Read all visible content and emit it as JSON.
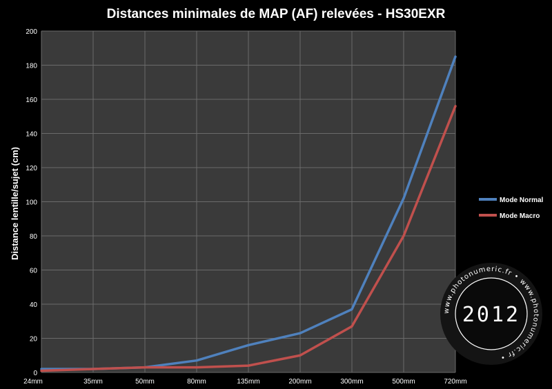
{
  "chart_data": {
    "type": "line",
    "title": "Distances minimales de MAP (AF) relevées - HS30EXR",
    "ylabel": "Distance lentille/sujet (cm)",
    "xlabel": "",
    "categories": [
      "24mm",
      "35mm",
      "50mm",
      "80mm",
      "135mm",
      "200mm",
      "300mm",
      "500mm",
      "720mm"
    ],
    "ylim": [
      0,
      200
    ],
    "yticks": [
      0,
      20,
      40,
      60,
      80,
      100,
      120,
      140,
      160,
      180,
      200
    ],
    "grid": true,
    "legend_position": "right",
    "series": [
      {
        "name": "Mode Normal",
        "color": "#4f81bd",
        "values": [
          2,
          2,
          3,
          7,
          16,
          23,
          37,
          102,
          185
        ]
      },
      {
        "name": "Mode Macro",
        "color": "#c0504d",
        "values": [
          1,
          2,
          3,
          3,
          4,
          10,
          27,
          80,
          156
        ]
      }
    ]
  },
  "colors": {
    "background": "#000000",
    "plot_background": "#3a3a3a",
    "gridline": "#6b6b6b",
    "text": "#ffffff"
  },
  "watermark": {
    "year": "2012",
    "ring_text": "www.photonumeric.fr"
  }
}
